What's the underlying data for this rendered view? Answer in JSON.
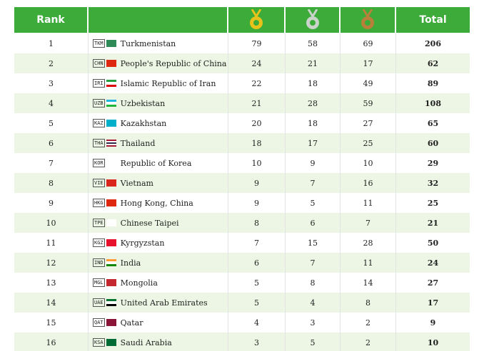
{
  "table": {
    "header": {
      "rank": "Rank",
      "total": "Total"
    },
    "rows": [
      [
        "1",
        "TKM",
        "Turkmenistan",
        "79",
        "58",
        "69",
        "206"
      ],
      [
        "2",
        "CHN",
        "People's Republic of China",
        "24",
        "21",
        "17",
        "62"
      ],
      [
        "3",
        "IRI",
        "Islamic Republic of Iran",
        "22",
        "18",
        "49",
        "89"
      ],
      [
        "4",
        "UZB",
        "Uzbekistan",
        "21",
        "28",
        "59",
        "108"
      ],
      [
        "5",
        "KAZ",
        "Kazakhstan",
        "20",
        "18",
        "27",
        "65"
      ],
      [
        "6",
        "THA",
        "Thailand",
        "18",
        "17",
        "25",
        "60"
      ],
      [
        "7",
        "KOR",
        "Republic of Korea",
        "10",
        "9",
        "10",
        "29"
      ],
      [
        "8",
        "VIE",
        "Vietnam",
        "9",
        "7",
        "16",
        "32"
      ],
      [
        "9",
        "HKG",
        "Hong Kong, China",
        "9",
        "5",
        "11",
        "25"
      ],
      [
        "10",
        "TPE",
        "Chinese Taipei",
        "8",
        "6",
        "7",
        "21"
      ],
      [
        "11",
        "KGZ",
        "Kyrgyzstan",
        "7",
        "15",
        "28",
        "50"
      ],
      [
        "12",
        "IND",
        "India",
        "6",
        "7",
        "11",
        "24"
      ],
      [
        "13",
        "MGL",
        "Mongolia",
        "5",
        "8",
        "14",
        "27"
      ],
      [
        "14",
        "UAE",
        "United Arab Emirates",
        "5",
        "4",
        "8",
        "17"
      ],
      [
        "15",
        "QAT",
        "Qatar",
        "4",
        "3",
        "2",
        "9"
      ],
      [
        "16",
        "KSA",
        "Saudi Arabia",
        "3",
        "5",
        "2",
        "10"
      ]
    ]
  }
}
